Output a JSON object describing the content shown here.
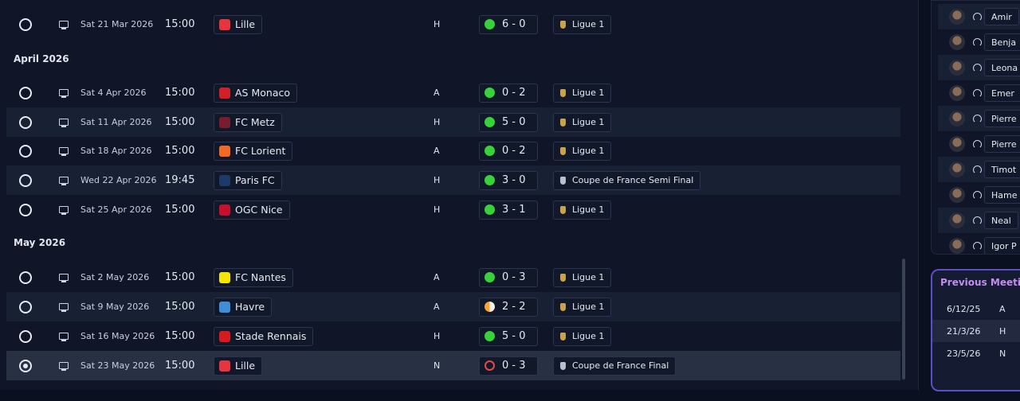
{
  "months": [
    {
      "label": "April 2026"
    },
    {
      "label": "May 2026"
    }
  ],
  "matches": [
    {
      "date": "Sat 21 Mar 2026",
      "time": "15:00",
      "team": "Lille",
      "venue": "H",
      "result": "win",
      "score": "6 - 0",
      "competition": "Ligue 1",
      "crest": "#e8343c"
    },
    {
      "date": "Sat 4 Apr 2026",
      "time": "15:00",
      "team": "AS Monaco",
      "venue": "A",
      "result": "win",
      "score": "0 - 2",
      "competition": "Ligue 1",
      "crest": "#d32027"
    },
    {
      "date": "Sat 11 Apr 2026",
      "time": "15:00",
      "team": "FC Metz",
      "venue": "H",
      "result": "win",
      "score": "5 - 0",
      "competition": "Ligue 1",
      "crest": "#7a1c2e"
    },
    {
      "date": "Sat 18 Apr 2026",
      "time": "15:00",
      "team": "FC Lorient",
      "venue": "A",
      "result": "win",
      "score": "0 - 2",
      "competition": "Ligue 1",
      "crest": "#f26a21"
    },
    {
      "date": "Wed 22 Apr 2026",
      "time": "19:45",
      "team": "Paris FC",
      "venue": "H",
      "result": "win",
      "score": "3 - 0",
      "competition": "Coupe de France Semi Final",
      "crest": "#1e3a6b"
    },
    {
      "date": "Sat 25 Apr 2026",
      "time": "15:00",
      "team": "OGC Nice",
      "venue": "H",
      "result": "win",
      "score": "3 - 1",
      "competition": "Ligue 1",
      "crest": "#c8102e"
    },
    {
      "date": "Sat 2 May 2026",
      "time": "15:00",
      "team": "FC Nantes",
      "venue": "A",
      "result": "win",
      "score": "0 - 3",
      "competition": "Ligue 1",
      "crest": "#f4e400"
    },
    {
      "date": "Sat 9 May 2026",
      "time": "15:00",
      "team": "Havre",
      "venue": "A",
      "result": "draw",
      "score": "2 - 2",
      "competition": "Ligue 1",
      "crest": "#3f8fd6"
    },
    {
      "date": "Sat 16 May 2026",
      "time": "15:00",
      "team": "Stade Rennais",
      "venue": "H",
      "result": "win",
      "score": "5 - 0",
      "competition": "Ligue 1",
      "crest": "#d71920"
    },
    {
      "date": "Sat 23 May 2026",
      "time": "15:00",
      "team": "Lille",
      "venue": "N",
      "result": "loss",
      "score": "0 - 3",
      "competition": "Coupe de France Final",
      "crest": "#e8343c"
    }
  ],
  "colors": {
    "ligue1_trophy": "#c9a24a",
    "cup_trophy": "#b9bfcc",
    "accent": "#5c4fc6"
  },
  "players": [
    {
      "name": "Amir"
    },
    {
      "name": "Benja"
    },
    {
      "name": "Leona"
    },
    {
      "name": "Emer"
    },
    {
      "name": "Pierre"
    },
    {
      "name": "Pierre"
    },
    {
      "name": "Timot"
    },
    {
      "name": "Hame"
    },
    {
      "name": "Neal"
    },
    {
      "name": "Igor P"
    }
  ],
  "previous_meetings": {
    "title": "Previous Meetings",
    "rows": [
      {
        "date": "6/12/25",
        "venue": "A"
      },
      {
        "date": "21/3/26",
        "venue": "H"
      },
      {
        "date": "23/5/26",
        "venue": "N"
      }
    ]
  }
}
